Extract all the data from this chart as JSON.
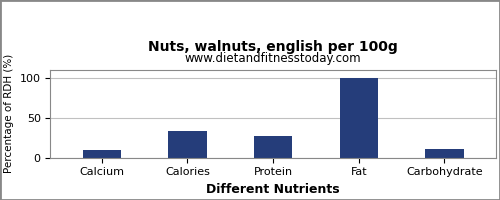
{
  "title": "Nuts, walnuts, english per 100g",
  "subtitle": "www.dietandfitnesstoday.com",
  "xlabel": "Different Nutrients",
  "ylabel": "Percentage of RDH (%)",
  "categories": [
    "Calcium",
    "Calories",
    "Protein",
    "Fat",
    "Carbohydrate"
  ],
  "values": [
    10,
    33,
    27,
    100,
    11
  ],
  "bar_color": "#253d7a",
  "ylim": [
    0,
    110
  ],
  "yticks": [
    0,
    50,
    100
  ],
  "background_color": "#ffffff",
  "plot_background": "#ffffff",
  "title_fontsize": 10,
  "subtitle_fontsize": 8.5,
  "xlabel_fontsize": 9,
  "ylabel_fontsize": 7.5,
  "tick_fontsize": 8,
  "grid_color": "#c0c0c0",
  "border_color": "#888888",
  "bar_width": 0.45
}
